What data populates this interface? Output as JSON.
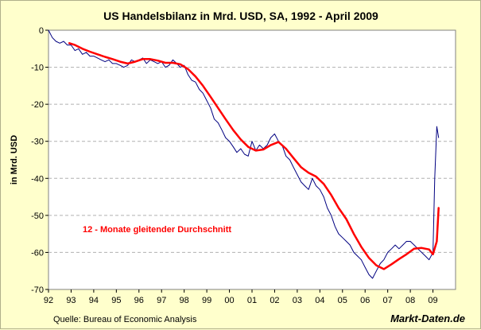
{
  "chart_data": {
    "type": "line",
    "title": "US Handelsbilanz in Mrd. USD, SA, 1992 - April 2009",
    "ylabel": "in Mrd. USD",
    "xlabel": "",
    "x_tick_labels": [
      "92",
      "93",
      "94",
      "95",
      "96",
      "97",
      "98",
      "99",
      "00",
      "01",
      "02",
      "03",
      "04",
      "05",
      "06",
      "07",
      "08",
      "09"
    ],
    "y_ticks": [
      0,
      -10,
      -20,
      -30,
      -40,
      -50,
      -60,
      -70
    ],
    "ylim": [
      -70,
      0
    ],
    "xlim": [
      1992.0,
      2010.0
    ],
    "grid": true,
    "annotation": "12 - Monate gleitender Durchschnitt",
    "source": "Quelle: Bureau of Economic Analysis",
    "brand": "Markt-Daten.de",
    "series": [
      {
        "color": "#000080",
        "x": [
          1992.0,
          1992.17,
          1992.33,
          1992.5,
          1992.67,
          1992.83,
          1993.0,
          1993.17,
          1993.33,
          1993.5,
          1993.67,
          1993.83,
          1994.0,
          1994.17,
          1994.33,
          1994.5,
          1994.67,
          1994.83,
          1995.0,
          1995.17,
          1995.33,
          1995.5,
          1995.67,
          1995.83,
          1996.0,
          1996.17,
          1996.33,
          1996.5,
          1996.67,
          1996.83,
          1997.0,
          1997.17,
          1997.33,
          1997.5,
          1997.67,
          1997.83,
          1998.0,
          1998.17,
          1998.33,
          1998.5,
          1998.67,
          1998.83,
          1999.0,
          1999.17,
          1999.33,
          1999.5,
          1999.67,
          1999.83,
          2000.0,
          2000.17,
          2000.33,
          2000.5,
          2000.67,
          2000.83,
          2001.0,
          2001.17,
          2001.33,
          2001.5,
          2001.67,
          2001.83,
          2002.0,
          2002.17,
          2002.33,
          2002.5,
          2002.67,
          2002.83,
          2003.0,
          2003.17,
          2003.33,
          2003.5,
          2003.67,
          2003.83,
          2004.0,
          2004.17,
          2004.33,
          2004.5,
          2004.67,
          2004.83,
          2005.0,
          2005.17,
          2005.33,
          2005.5,
          2005.67,
          2005.83,
          2006.0,
          2006.17,
          2006.33,
          2006.5,
          2006.67,
          2006.83,
          2007.0,
          2007.17,
          2007.33,
          2007.5,
          2007.67,
          2007.83,
          2008.0,
          2008.17,
          2008.33,
          2008.5,
          2008.67,
          2008.83,
          2009.0,
          2009.08,
          2009.17,
          2009.25
        ],
        "y": [
          0,
          -2,
          -3,
          -3.5,
          -3,
          -4,
          -4,
          -5.5,
          -5,
          -6.5,
          -6,
          -7,
          -7,
          -7.5,
          -8,
          -8.5,
          -8,
          -9,
          -9,
          -9.5,
          -10,
          -9.5,
          -8,
          -8.5,
          -8,
          -7.5,
          -9,
          -8,
          -8.5,
          -9,
          -8.5,
          -10,
          -9.5,
          -8,
          -9,
          -10,
          -9.5,
          -12,
          -13.5,
          -14,
          -16,
          -17,
          -19,
          -21,
          -24,
          -25,
          -27,
          -29,
          -30,
          -31.5,
          -33,
          -32,
          -33.5,
          -34,
          -30,
          -32.5,
          -31,
          -32,
          -31,
          -29,
          -28,
          -30,
          -31,
          -34,
          -35,
          -37,
          -39,
          -41,
          -42,
          -43,
          -40,
          -42,
          -43,
          -45,
          -48,
          -50,
          -53,
          -55,
          -56,
          -57,
          -58,
          -60,
          -61,
          -62,
          -64,
          -66,
          -67,
          -65,
          -63,
          -62,
          -60,
          -59,
          -58,
          -59,
          -58,
          -57,
          -57,
          -58,
          -59,
          -60,
          -61,
          -62,
          -60,
          -40,
          -26,
          -29
        ]
      },
      {
        "color": "#ff0000",
        "x": [
          1992.92,
          1993.17,
          1993.5,
          1993.83,
          1994.17,
          1994.5,
          1994.83,
          1995.17,
          1995.5,
          1995.83,
          1996.17,
          1996.5,
          1996.83,
          1997.17,
          1997.5,
          1997.83,
          1998.17,
          1998.5,
          1998.83,
          1999.17,
          1999.5,
          1999.83,
          2000.17,
          2000.5,
          2000.83,
          2001.17,
          2001.5,
          2001.83,
          2002.17,
          2002.5,
          2002.83,
          2003.17,
          2003.5,
          2003.83,
          2004.17,
          2004.5,
          2004.83,
          2005.17,
          2005.5,
          2005.83,
          2006.17,
          2006.5,
          2006.83,
          2007.17,
          2007.5,
          2007.83,
          2008.17,
          2008.5,
          2008.83,
          2009.0,
          2009.17,
          2009.25
        ],
        "y": [
          -3.5,
          -4,
          -5,
          -5.8,
          -6.5,
          -7.2,
          -7.8,
          -8.5,
          -9,
          -8.5,
          -7.8,
          -7.8,
          -8.2,
          -8.8,
          -8.8,
          -9.2,
          -10.5,
          -12.5,
          -15,
          -18,
          -21,
          -24,
          -27,
          -29.5,
          -31.5,
          -32.5,
          -32.2,
          -31,
          -30.2,
          -32,
          -34.5,
          -37,
          -38.5,
          -39.5,
          -41.5,
          -44.5,
          -48,
          -51,
          -55,
          -58.5,
          -61.5,
          -63.5,
          -64.5,
          -63.2,
          -61.8,
          -60.5,
          -59,
          -58.8,
          -59.2,
          -60.5,
          -57,
          -48
        ]
      }
    ]
  }
}
